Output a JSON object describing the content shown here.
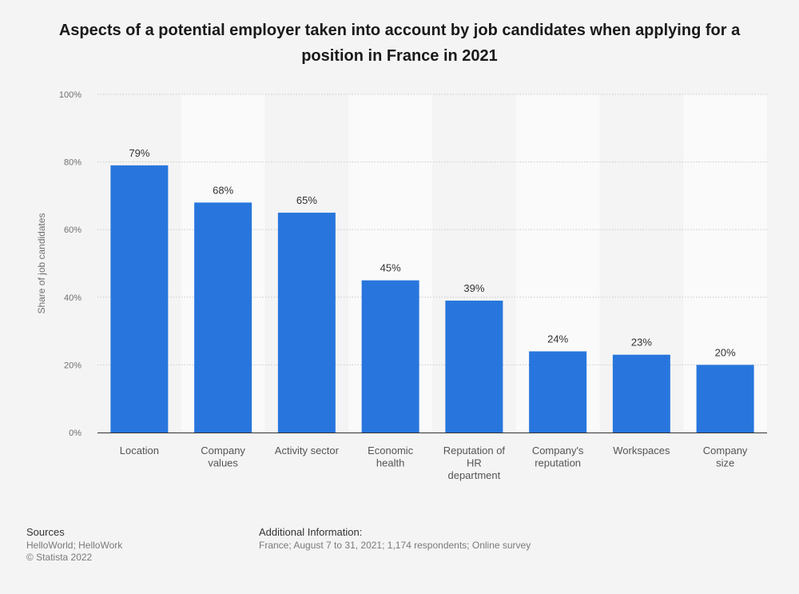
{
  "title": "Aspects of a potential employer taken into account by job candidates when applying for a position in France in 2021",
  "chart_data": {
    "type": "bar",
    "title": "Aspects of a potential employer taken into account by job candidates when applying for a position in France in 2021",
    "categories": [
      "Location",
      "Company values",
      "Activity sector",
      "Economic health",
      "Reputation of HR department",
      "Company's reputation",
      "Workspaces",
      "Company size"
    ],
    "category_lines": [
      [
        "Location"
      ],
      [
        "Company",
        "values"
      ],
      [
        "Activity sector"
      ],
      [
        "Economic",
        "health"
      ],
      [
        "Reputation of",
        "HR",
        "department"
      ],
      [
        "Company's",
        "reputation"
      ],
      [
        "Workspaces"
      ],
      [
        "Company",
        "size"
      ]
    ],
    "values": [
      79,
      68,
      65,
      45,
      39,
      24,
      23,
      20
    ],
    "data_labels": [
      "79%",
      "68%",
      "65%",
      "45%",
      "39%",
      "24%",
      "23%",
      "20%"
    ],
    "ylabel": "Share of job candidates",
    "xlabel": "",
    "ylim": [
      0,
      100
    ],
    "yticks": [
      0,
      20,
      40,
      60,
      80,
      100
    ],
    "ytick_labels": [
      "0%",
      "20%",
      "40%",
      "60%",
      "80%",
      "100%"
    ],
    "grid": true,
    "bar_color": "#2876dd"
  },
  "sources": {
    "heading": "Sources",
    "line1": "HelloWorld; HelloWork",
    "line2": "© Statista 2022"
  },
  "additional": {
    "heading": "Additional Information:",
    "text": "France; August 7 to 31, 2021; 1,174 respondents; Online survey"
  }
}
